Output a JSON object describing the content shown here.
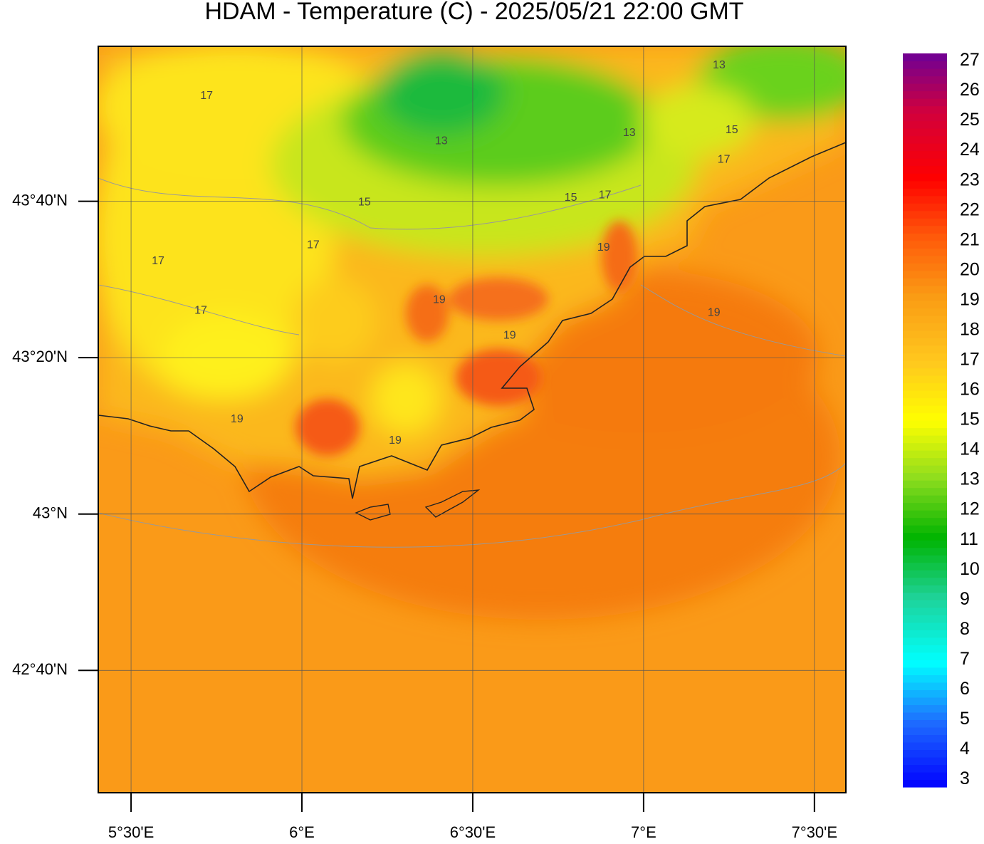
{
  "title": "HDAM - Temperature (C)  -  2025/05/21  22:00 GMT",
  "map": {
    "xlim": [
      5.404,
      7.592
    ],
    "ylim": [
      42.406,
      43.997
    ],
    "xticks": [
      {
        "value": 5.5,
        "label": "5°30'E"
      },
      {
        "value": 6,
        "label": "6°E"
      },
      {
        "value": 6.5,
        "label": "6°30'E"
      },
      {
        "value": 7,
        "label": "7°E"
      },
      {
        "value": 7.5,
        "label": "7°30'E"
      }
    ],
    "yticks": [
      {
        "value": 43.6667,
        "label": "43°40'N"
      },
      {
        "value": 43.3333,
        "label": "43°20'N"
      },
      {
        "value": 43,
        "label": "43°N"
      },
      {
        "value": 42.6667,
        "label": "42°40'N"
      }
    ],
    "grid": true,
    "contour_labels": [
      {
        "value": 17,
        "lon": 5.721,
        "lat": 43.891
      },
      {
        "value": 13,
        "lon": 6.408,
        "lat": 43.795
      },
      {
        "value": 15,
        "lon": 6.183,
        "lat": 43.664
      },
      {
        "value": 17,
        "lon": 6.033,
        "lat": 43.573
      },
      {
        "value": 17,
        "lon": 5.579,
        "lat": 43.539
      },
      {
        "value": 17,
        "lon": 5.704,
        "lat": 43.433
      },
      {
        "value": 19,
        "lon": 6.402,
        "lat": 43.456
      },
      {
        "value": 19,
        "lon": 6.608,
        "lat": 43.38
      },
      {
        "value": 19,
        "lon": 5.81,
        "lat": 43.202
      },
      {
        "value": 19,
        "lon": 6.273,
        "lat": 43.156
      },
      {
        "value": 15,
        "lon": 6.787,
        "lat": 43.674
      },
      {
        "value": 17,
        "lon": 6.887,
        "lat": 43.679
      },
      {
        "value": 19,
        "lon": 6.883,
        "lat": 43.568
      },
      {
        "value": 13,
        "lon": 6.958,
        "lat": 43.812
      },
      {
        "value": 13,
        "lon": 7.221,
        "lat": 43.956
      },
      {
        "value": 15,
        "lon": 7.258,
        "lat": 43.818
      },
      {
        "value": 17,
        "lon": 7.235,
        "lat": 43.755
      },
      {
        "value": 19,
        "lon": 7.206,
        "lat": 43.429
      }
    ]
  },
  "colorbar": {
    "lim": [
      2.75,
      27.25
    ],
    "ticks": [
      3,
      4,
      5,
      6,
      7,
      8,
      9,
      10,
      11,
      12,
      13,
      14,
      15,
      16,
      17,
      18,
      19,
      20,
      21,
      22,
      23,
      24,
      25,
      26,
      27
    ]
  }
}
